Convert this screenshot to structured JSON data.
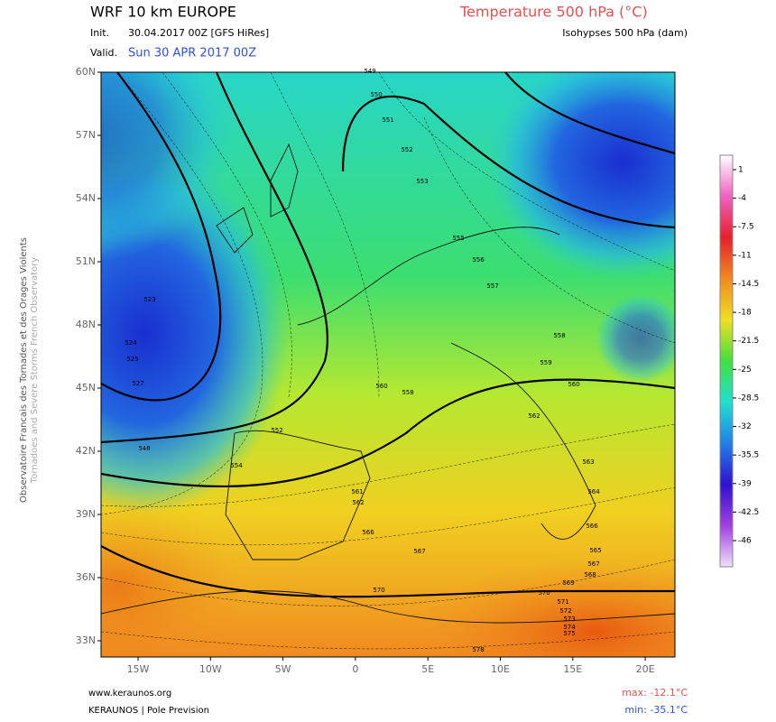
{
  "header": {
    "model": "WRF 10 km EUROPE",
    "init_label": "Init.",
    "init": "30.04.2017 00Z [GFS HiRes]",
    "valid_label": "Valid.",
    "valid": "Sun 30 APR 2017 00Z",
    "parameter": "Temperature 500 hPa (°C)",
    "isohypses": "Isohypses 500 hPa (dam)"
  },
  "side": {
    "org_fr": "Observatoire Francais des Tornades et des Orages Violents",
    "org_en": "Tornadoes and Severe Storms French Observatory"
  },
  "axes": {
    "lat": [
      "60N",
      "57N",
      "54N",
      "51N",
      "48N",
      "45N",
      "42N",
      "39N",
      "36N",
      "33N"
    ],
    "lon": [
      "15W",
      "10W",
      "5W",
      "0",
      "5E",
      "10E",
      "15E",
      "20E"
    ]
  },
  "colorbar": {
    "ticks": [
      1,
      -4,
      -7.5,
      -11,
      -14.5,
      -18,
      -21.5,
      -25,
      -28.5,
      -32,
      -35.5,
      -39,
      -42.5,
      -46
    ]
  },
  "contour_labels": [
    549,
    550,
    551,
    552,
    553,
    555,
    556,
    557,
    558,
    559,
    560,
    562,
    563,
    564,
    565,
    566,
    567,
    568,
    569,
    570,
    571,
    572,
    573,
    574,
    575,
    578,
    523,
    524,
    525,
    527,
    548,
    552,
    554,
    558,
    560,
    570,
    561,
    562,
    566,
    567
  ],
  "footer": {
    "site": "www.keraunos.org",
    "brand": "KERAUNOS | Pole Prevision",
    "max": "max: -12.1°C",
    "min": "min: -35.1°C"
  }
}
